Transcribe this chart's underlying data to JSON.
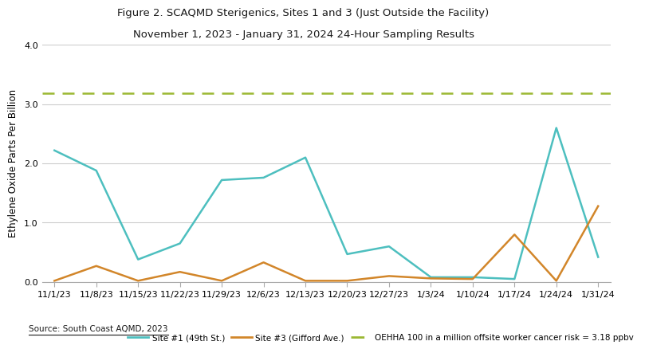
{
  "title_line1": "Figure 2. SCAQMD Sterigenics, Sites 1 and 3 (Just Outside the Facility)",
  "title_line2": "November 1, 2023 - January 31, 2024 24-Hour Sampling Results",
  "ylabel": "Ethylene Oxide Parts Per Billion",
  "source_text": "Source: South Coast AQMD, 2023",
  "oehha_value": 3.18,
  "ylim": [
    0,
    4.0
  ],
  "yticks": [
    0.0,
    1.0,
    2.0,
    3.0,
    4.0
  ],
  "x_labels": [
    "11/1/23",
    "11/8/23",
    "11/15/23",
    "11/22/23",
    "11/29/23",
    "12/6/23",
    "12/13/23",
    "12/20/23",
    "12/27/23",
    "1/3/24",
    "1/10/24",
    "1/17/24",
    "1/24/24",
    "1/31/24"
  ],
  "site1_values": [
    2.22,
    1.88,
    0.38,
    0.65,
    1.72,
    1.76,
    2.1,
    0.47,
    0.6,
    0.08,
    0.08,
    0.05,
    2.6,
    0.42
  ],
  "site3_values": [
    0.02,
    0.27,
    0.02,
    0.17,
    0.02,
    0.33,
    0.02,
    0.02,
    0.1,
    0.06,
    0.05,
    0.8,
    0.02,
    1.28
  ],
  "site1_color": "#4DBFBF",
  "site3_color": "#D2862A",
  "oehha_color": "#9BB832",
  "bg_color": "#FFFFFF",
  "grid_color": "#CCCCCC",
  "legend_site1": "Site #1 (49th St.)",
  "legend_site3": "Site #3 (Gifford Ave.)",
  "legend_oehha": "OEHHA 100 in a million offsite worker cancer risk = 3.18 ppbv",
  "title_fontsize": 9.5,
  "axis_label_fontsize": 8.5,
  "tick_fontsize": 8.0,
  "legend_fontsize": 7.5,
  "source_fontsize": 7.5
}
